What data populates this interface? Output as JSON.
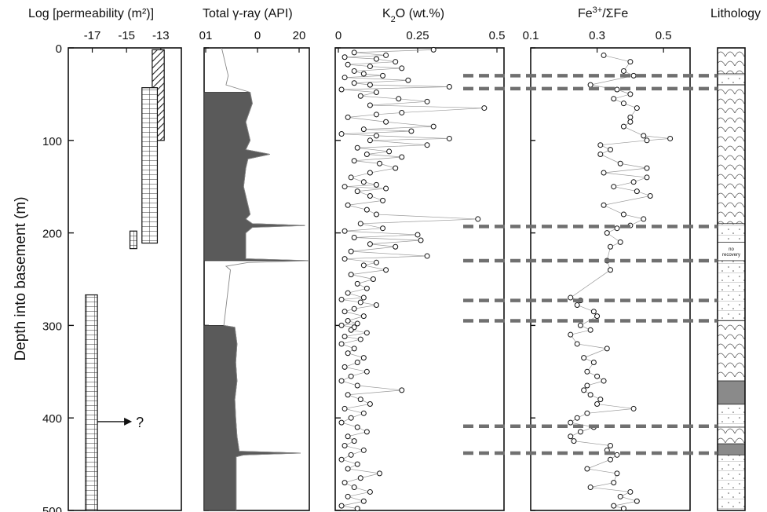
{
  "figure": {
    "y_axis_label": "Depth into basement (m)",
    "depth_ticks": [
      "0",
      "100",
      "200",
      "300",
      "400",
      "500"
    ]
  },
  "chart_data": [
    {
      "type": "bar",
      "title": "Log [permeability (m²)]",
      "xlim": [
        -18.4,
        -11.8
      ],
      "x_ticks": [
        "-17",
        "-15",
        "-13"
      ],
      "ylim": [
        0,
        500
      ],
      "intervals": [
        {
          "depth_top": 2,
          "depth_bottom": 100,
          "log_perm_min": -13.5,
          "log_perm_max": -12.8,
          "pattern": "hatched"
        },
        {
          "depth_top": 43,
          "depth_bottom": 211,
          "log_perm_min": -14.1,
          "log_perm_max": -13.2,
          "pattern": "grid"
        },
        {
          "depth_top": 198,
          "depth_bottom": 217,
          "log_perm_min": -14.8,
          "log_perm_max": -14.4,
          "pattern": "grid"
        },
        {
          "depth_top": 267,
          "depth_bottom": 500,
          "log_perm_min": -17.4,
          "log_perm_max": -16.7,
          "pattern": "grid"
        }
      ],
      "annotation": "?",
      "annotation_depth": 404
    },
    {
      "type": "area",
      "title": "Total γ-ray (API)",
      "x_ticks": [
        "01",
        "0",
        "20"
      ],
      "ylim": [
        0,
        500
      ],
      "depth": [
        0,
        10,
        20,
        30,
        40,
        48,
        60,
        80,
        100,
        110,
        115,
        120,
        130,
        150,
        170,
        180,
        185,
        190,
        192,
        194,
        200,
        210,
        220,
        228,
        230,
        232,
        236,
        240,
        260,
        280,
        300,
        302,
        320,
        340,
        360,
        380,
        400,
        420,
        436,
        438,
        440,
        442,
        460,
        480,
        500
      ],
      "value": [
        1,
        1.5,
        2,
        2.5,
        2,
        7.5,
        8,
        6.5,
        7.5,
        6.5,
        12,
        7,
        6.5,
        6,
        7,
        7.5,
        6.5,
        8,
        20,
        8,
        6.5,
        6.5,
        6.5,
        6.5,
        21,
        7,
        2,
        3,
        2.5,
        2,
        1.5,
        4,
        4.5,
        4.2,
        4.5,
        4,
        4.2,
        4.5,
        5,
        19,
        6,
        4.3,
        4.3,
        4.3,
        4.3
      ],
      "shaded_intervals": [
        [
          48,
          230
        ],
        [
          300,
          500
        ]
      ]
    },
    {
      "type": "scatter",
      "title": "K₂O (wt.%)",
      "title_main": "K",
      "title_sub": "2",
      "title_rest": "O (wt.%)",
      "x_ticks": [
        "0",
        "0.25",
        "0.5"
      ],
      "xlim": [
        0,
        0.5
      ],
      "ylim": [
        0,
        500
      ],
      "depth": [
        2,
        5,
        8,
        10,
        12,
        15,
        18,
        20,
        22,
        25,
        28,
        30,
        32,
        35,
        38,
        40,
        42,
        45,
        48,
        52,
        55,
        58,
        62,
        65,
        70,
        72,
        75,
        80,
        85,
        88,
        90,
        93,
        95,
        98,
        100,
        105,
        108,
        112,
        115,
        118,
        122,
        125,
        130,
        135,
        140,
        145,
        148,
        150,
        152,
        155,
        160,
        165,
        170,
        175,
        180,
        185,
        190,
        195,
        198,
        202,
        205,
        208,
        212,
        215,
        220,
        225,
        228,
        232,
        235,
        240,
        245,
        250,
        255,
        260,
        265,
        270,
        272,
        275,
        278,
        282,
        285,
        290,
        295,
        298,
        300,
        302,
        305,
        308,
        312,
        315,
        320,
        325,
        330,
        335,
        340,
        345,
        350,
        355,
        360,
        365,
        370,
        375,
        380,
        385,
        390,
        395,
        400,
        405,
        410,
        415,
        420,
        425,
        430,
        435,
        440,
        445,
        450,
        455,
        460,
        465,
        470,
        475,
        480,
        485,
        490,
        495,
        498
      ],
      "k2o": [
        0.3,
        0.05,
        0.15,
        0.02,
        0.12,
        0.18,
        0.03,
        0.1,
        0.2,
        0.05,
        0.08,
        0.14,
        0.02,
        0.22,
        0.05,
        0.1,
        0.35,
        0.01,
        0.12,
        0.07,
        0.19,
        0.28,
        0.1,
        0.46,
        0.2,
        0.12,
        0.03,
        0.15,
        0.3,
        0.08,
        0.23,
        0.01,
        0.12,
        0.35,
        0.1,
        0.28,
        0.06,
        0.16,
        0.09,
        0.2,
        0.05,
        0.13,
        0.18,
        0.1,
        0.04,
        0.08,
        0.12,
        0.02,
        0.15,
        0.06,
        0.1,
        0.14,
        0.03,
        0.09,
        0.12,
        0.44,
        0.07,
        0.14,
        0.02,
        0.25,
        0.05,
        0.26,
        0.1,
        0.18,
        0.04,
        0.28,
        0.02,
        0.12,
        0.08,
        0.15,
        0.04,
        0.11,
        0.06,
        0.09,
        0.03,
        0.08,
        0.01,
        0.07,
        0.12,
        0.05,
        0.02,
        0.08,
        0.03,
        0.06,
        0.01,
        0.05,
        0.04,
        0.09,
        0.02,
        0.07,
        0.01,
        0.05,
        0.03,
        0.08,
        0.06,
        0.02,
        0.09,
        0.04,
        0.01,
        0.06,
        0.2,
        0.03,
        0.07,
        0.1,
        0.02,
        0.08,
        0.04,
        0.01,
        0.06,
        0.09,
        0.03,
        0.05,
        0.02,
        0.08,
        0.04,
        0.01,
        0.06,
        0.03,
        0.13,
        0.07,
        0.02,
        0.05,
        0.1,
        0.03,
        0.08,
        0.01,
        0.06
      ]
    },
    {
      "type": "scatter",
      "title": "Fe³⁺/ΣFe",
      "title_main": "Fe",
      "title_sup": "3+",
      "title_rest": "/ΣFe",
      "x_ticks": [
        "0.1",
        "0.3",
        "0.5"
      ],
      "xlim": [
        0.1,
        0.58
      ],
      "ylim": [
        0,
        500
      ],
      "depth": [
        8,
        15,
        25,
        30,
        40,
        45,
        50,
        55,
        60,
        65,
        75,
        80,
        85,
        95,
        98,
        100,
        105,
        110,
        115,
        125,
        130,
        135,
        140,
        145,
        150,
        155,
        160,
        170,
        180,
        185,
        192,
        195,
        200,
        210,
        215,
        230,
        240,
        270,
        273,
        278,
        285,
        290,
        300,
        305,
        310,
        320,
        325,
        335,
        340,
        350,
        355,
        360,
        365,
        370,
        375,
        380,
        385,
        390,
        395,
        400,
        405,
        410,
        415,
        420,
        425,
        430,
        435,
        440,
        445,
        455,
        460,
        470,
        475,
        480,
        485,
        490,
        495,
        498
      ],
      "fe": [
        0.32,
        0.4,
        0.38,
        0.41,
        0.28,
        0.36,
        0.4,
        0.35,
        0.38,
        0.42,
        0.4,
        0.4,
        0.38,
        0.44,
        0.52,
        0.45,
        0.31,
        0.34,
        0.31,
        0.37,
        0.45,
        0.32,
        0.45,
        0.41,
        0.35,
        0.42,
        0.46,
        0.32,
        0.38,
        0.44,
        0.4,
        0.36,
        0.33,
        0.37,
        0.34,
        0.33,
        0.34,
        0.22,
        0.25,
        0.24,
        0.29,
        0.3,
        0.25,
        0.28,
        0.22,
        0.24,
        0.33,
        0.26,
        0.29,
        0.27,
        0.3,
        0.32,
        0.27,
        0.26,
        0.28,
        0.31,
        0.3,
        0.41,
        0.27,
        0.24,
        0.22,
        0.29,
        0.25,
        0.22,
        0.23,
        0.34,
        0.33,
        0.36,
        0.34,
        0.27,
        0.36,
        0.35,
        0.28,
        0.4,
        0.37,
        0.42,
        0.35,
        0.38
      ]
    },
    {
      "type": "table",
      "title": "Lithology",
      "ylim": [
        0,
        500
      ],
      "units": [
        {
          "top": 0,
          "bottom": 28,
          "fill": "pillow"
        },
        {
          "top": 28,
          "bottom": 40,
          "fill": "massive"
        },
        {
          "top": 40,
          "bottom": 190,
          "fill": "pillow"
        },
        {
          "top": 190,
          "bottom": 210,
          "fill": "massive"
        },
        {
          "top": 210,
          "bottom": 230,
          "fill": "no recovery",
          "label_1": "no",
          "label_2": "recovery"
        },
        {
          "top": 230,
          "bottom": 295,
          "fill": "massive"
        },
        {
          "top": 295,
          "bottom": 360,
          "fill": "pillow"
        },
        {
          "top": 360,
          "bottom": 385,
          "fill": "gray"
        },
        {
          "top": 385,
          "bottom": 410,
          "fill": "massive"
        },
        {
          "top": 410,
          "bottom": 428,
          "fill": "pillow"
        },
        {
          "top": 428,
          "bottom": 440,
          "fill": "gray"
        },
        {
          "top": 440,
          "bottom": 500,
          "fill": "massive"
        }
      ]
    }
  ],
  "boundary_depths": [
    30,
    44,
    193,
    230,
    273,
    295,
    409,
    438
  ]
}
